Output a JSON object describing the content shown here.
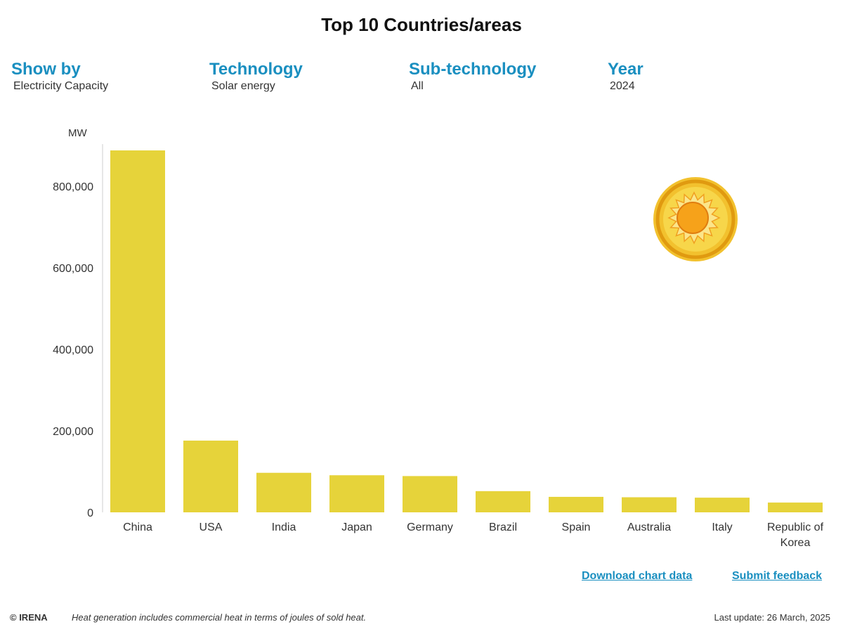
{
  "page": {
    "title": "Top 10 Countries/areas"
  },
  "filters": [
    {
      "label": "Show by",
      "value": "Electricity Capacity"
    },
    {
      "label": "Technology",
      "value": "Solar energy"
    },
    {
      "label": "Sub-technology",
      "value": "All"
    },
    {
      "label": "Year",
      "value": "2024"
    }
  ],
  "chart_data": {
    "type": "bar",
    "title": "Top 10 Countries/areas",
    "ylabel": "MW",
    "xlabel": "",
    "ylim": [
      0,
      900000
    ],
    "yticks": [
      0,
      200000,
      400000,
      600000,
      800000
    ],
    "ytick_labels": [
      "0",
      "200,000",
      "400,000",
      "600,000",
      "800,000"
    ],
    "categories": [
      "China",
      "USA",
      "India",
      "Japan",
      "Germany",
      "Brazil",
      "Spain",
      "Australia",
      "Italy",
      "Republic of Korea"
    ],
    "category_lines": [
      [
        "China"
      ],
      [
        "USA"
      ],
      [
        "India"
      ],
      [
        "Japan"
      ],
      [
        "Germany"
      ],
      [
        "Brazil"
      ],
      [
        "Spain"
      ],
      [
        "Australia"
      ],
      [
        "Italy"
      ],
      [
        "Republic of",
        "Korea"
      ]
    ],
    "values": [
      887900,
      176000,
      97000,
      91000,
      89000,
      52000,
      38000,
      37000,
      36000,
      24000
    ],
    "bar_color": "#e6d33a",
    "grid": false,
    "legend": "none"
  },
  "links": {
    "download": "Download chart data",
    "feedback": "Submit feedback"
  },
  "footer": {
    "copyright": "© IRENA",
    "note": "Heat generation includes commercial heat in terms of joules of sold heat.",
    "last_update": "Last update: 26 March, 2025"
  },
  "colors": {
    "accent": "#1a8fc0",
    "bar": "#e6d33a",
    "sun_outer": "#efb51c",
    "sun_core": "#f6a21a"
  },
  "icons": {
    "sun": "sun-icon"
  }
}
